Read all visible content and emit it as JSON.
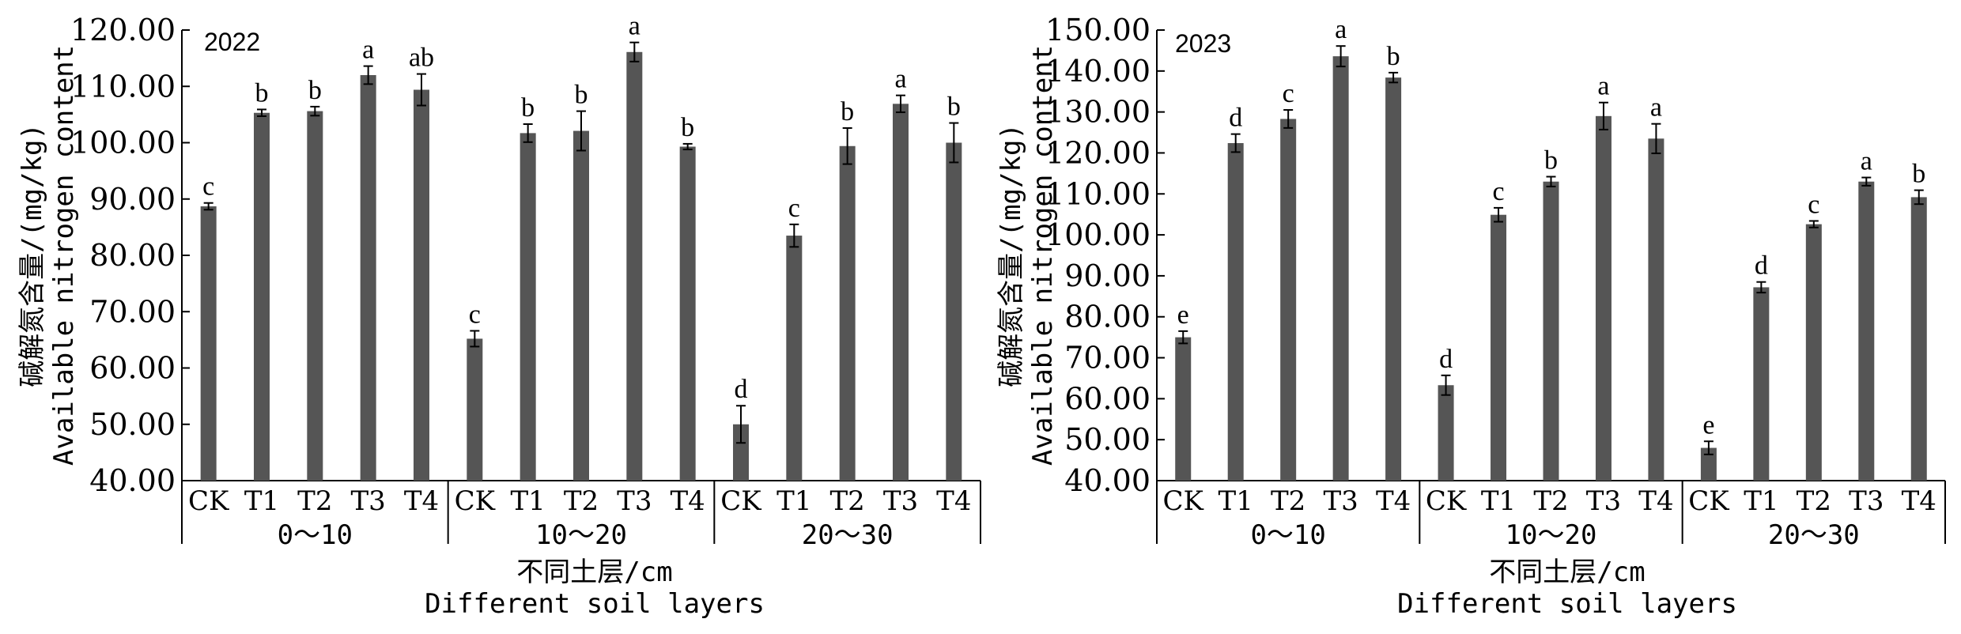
{
  "chart_data": [
    {
      "type": "bar",
      "annotation": "2022",
      "ylabel_cn": "碱解氮含量/(mg/kg)",
      "ylabel_en": "Available nitrogen content",
      "xlabel_cn": "不同土层/cm",
      "xlabel_en": "Different soil layers",
      "ylim": [
        40,
        120
      ],
      "yticks": [
        "40.00",
        "50.00",
        "60.00",
        "70.00",
        "80.00",
        "90.00",
        "100.00",
        "110.00",
        "120.00"
      ],
      "groups": [
        {
          "label": "0～10",
          "categories": [
            "CK",
            "T1",
            "T2",
            "T3",
            "T4"
          ],
          "values": [
            88.7,
            105.3,
            105.6,
            112.0,
            109.4
          ],
          "errors": [
            0.6,
            0.6,
            0.8,
            1.6,
            2.8
          ],
          "letters": [
            "c",
            "b",
            "b",
            "a",
            "ab"
          ]
        },
        {
          "label": "10～20",
          "categories": [
            "CK",
            "T1",
            "T2",
            "T3",
            "T4"
          ],
          "values": [
            65.2,
            101.7,
            102.1,
            116.1,
            99.3
          ],
          "errors": [
            1.4,
            1.6,
            3.5,
            1.7,
            0.5
          ],
          "letters": [
            "c",
            "b",
            "b",
            "a",
            "b"
          ]
        },
        {
          "label": "20～30",
          "categories": [
            "CK",
            "T1",
            "T2",
            "T3",
            "T4"
          ],
          "values": [
            50.0,
            83.5,
            99.4,
            106.9,
            100.0
          ],
          "errors": [
            3.3,
            2.0,
            3.2,
            1.5,
            3.5
          ],
          "letters": [
            "d",
            "c",
            "b",
            "a",
            "b"
          ]
        }
      ]
    },
    {
      "type": "bar",
      "annotation": "2023",
      "ylabel_cn": "碱解氮含量/(mg/kg)",
      "ylabel_en": "Available nitrogen content",
      "xlabel_cn": "不同土层/cm",
      "xlabel_en": "Different soil layers",
      "ylim": [
        40,
        150
      ],
      "yticks": [
        "40.00",
        "50.00",
        "60.00",
        "70.00",
        "80.00",
        "90.00",
        "100.00",
        "110.00",
        "120.00",
        "130.00",
        "140.00",
        "150.00"
      ],
      "groups": [
        {
          "label": "0～10",
          "categories": [
            "CK",
            "T1",
            "T2",
            "T3",
            "T4"
          ],
          "values": [
            75.0,
            122.4,
            128.3,
            143.6,
            138.4
          ],
          "errors": [
            1.5,
            2.2,
            2.2,
            2.5,
            1.2
          ],
          "letters": [
            "e",
            "d",
            "c",
            "a",
            "b"
          ]
        },
        {
          "label": "10～20",
          "categories": [
            "CK",
            "T1",
            "T2",
            "T3",
            "T4"
          ],
          "values": [
            63.3,
            104.9,
            113.0,
            129.0,
            123.5
          ],
          "errors": [
            2.4,
            1.7,
            1.2,
            3.3,
            3.6
          ],
          "letters": [
            "d",
            "c",
            "b",
            "a",
            "a"
          ]
        },
        {
          "label": "20～30",
          "categories": [
            "CK",
            "T1",
            "T2",
            "T3",
            "T4"
          ],
          "values": [
            48.0,
            87.2,
            102.6,
            113.0,
            109.2
          ],
          "errors": [
            1.6,
            1.3,
            0.8,
            1.0,
            1.7
          ],
          "letters": [
            "e",
            "d",
            "c",
            "a",
            "b"
          ]
        }
      ]
    }
  ]
}
